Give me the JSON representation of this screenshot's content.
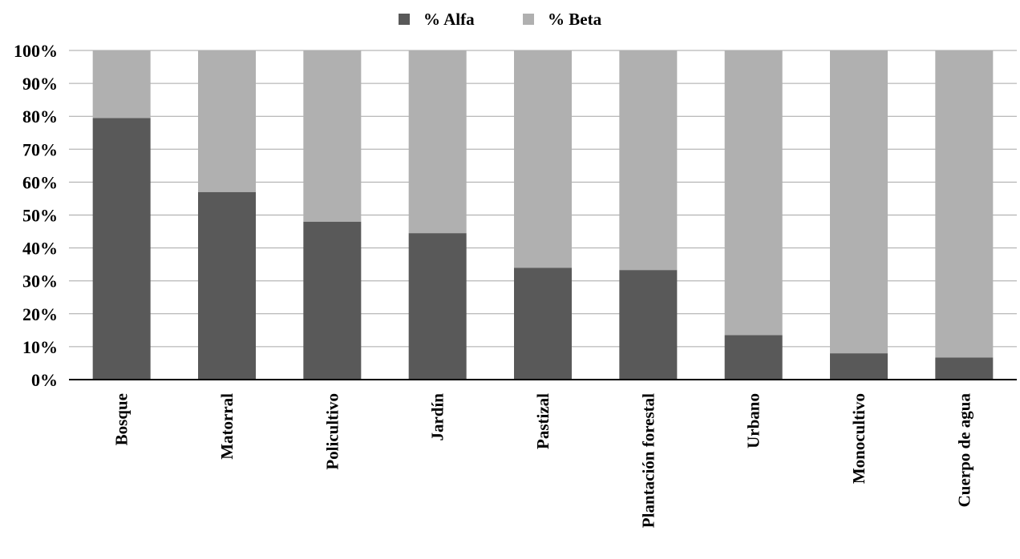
{
  "chart_data": {
    "type": "bar",
    "stacked": true,
    "percent": true,
    "categories": [
      "Bosque",
      "Matorral",
      "Policultivo",
      "Jardín",
      "Pastizal",
      "Plantación forestal",
      "Urbano",
      "Monocultivo",
      "Cuerpo de agua"
    ],
    "series": [
      {
        "name": "% Alfa",
        "color": "#595959",
        "values": [
          79.5,
          57,
          48,
          44.5,
          34,
          33.3,
          13.5,
          8,
          6.7
        ]
      },
      {
        "name": "% Beta",
        "color": "#b0b0b0",
        "values": [
          20.5,
          43,
          52,
          55.5,
          66,
          66.7,
          86.5,
          92,
          93.3
        ]
      }
    ],
    "yticks": [
      "0%",
      "10%",
      "20%",
      "30%",
      "40%",
      "50%",
      "60%",
      "70%",
      "80%",
      "90%",
      "100%"
    ],
    "ylim": [
      0,
      100
    ],
    "grid": true,
    "legend_position": "top-center",
    "title": "",
    "xlabel": "",
    "ylabel": ""
  }
}
